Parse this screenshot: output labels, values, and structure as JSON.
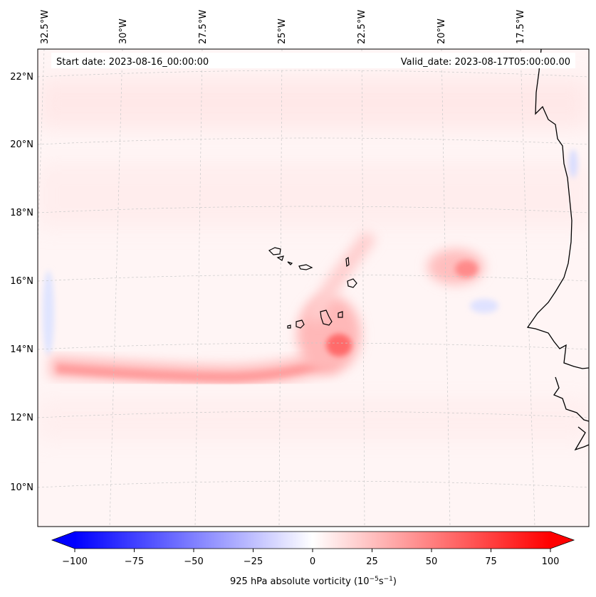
{
  "header": {
    "start_date": "Start date: 2023-08-16_00:00:00",
    "valid_date": "Valid_date: 2023-08-17T05:00:00.00"
  },
  "longitude_labels": [
    "32.5°W",
    "30°W",
    "27.5°W",
    "25°W",
    "22.5°W",
    "20°W",
    "17.5°W"
  ],
  "latitude_labels": [
    "22°N",
    "20°N",
    "18°N",
    "16°N",
    "14°N",
    "12°N",
    "10°N"
  ],
  "colorbar": {
    "label": "925 hPa absolute vorticity (10",
    "label_exp1": "−5",
    "label_mid": "s",
    "label_exp2": "−1",
    "label_end": ")",
    "ticks": [
      "−100",
      "−75",
      "−50",
      "−25",
      "0",
      "25",
      "50",
      "75",
      "100"
    ],
    "range": [
      -100,
      100
    ],
    "colormap": "bwr",
    "colors": {
      "min": "#0000ff",
      "mid": "#ffffff",
      "max": "#ff0000"
    }
  },
  "map_features": {
    "coastline_color": "#000000",
    "gridline_color": "#bbbbbb",
    "features": [
      "West African coastline",
      "Cape Verde islands",
      "vorticity maximum near Cape Verde",
      "zonal band of positive vorticity near 13.5°N"
    ]
  }
}
